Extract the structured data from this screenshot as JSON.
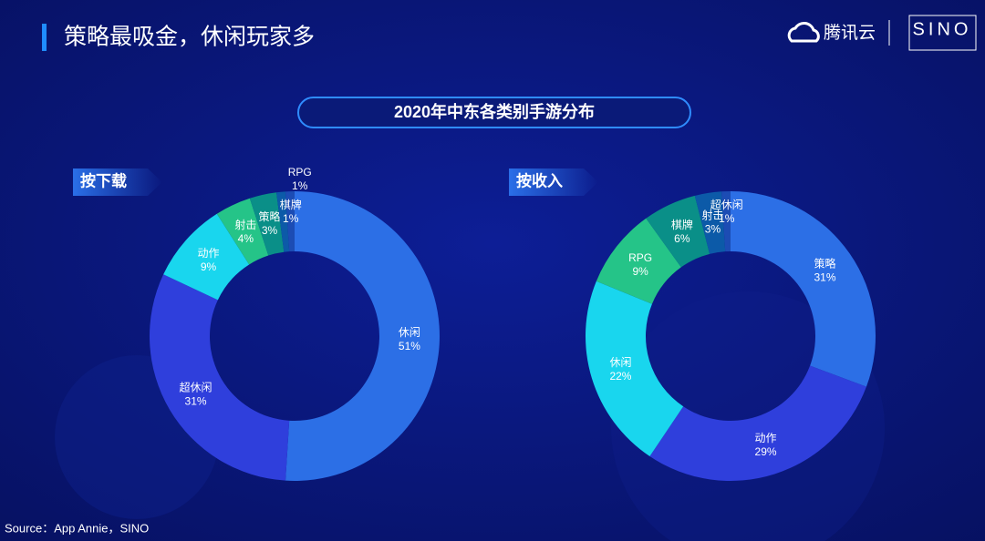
{
  "slide": {
    "title": "策略最吸金，休闲玩家多",
    "logo_text": "腾讯云",
    "brand": "SINO",
    "main_title": "2020年中东各类别手游分布",
    "source": "Source：App Annie，SINO"
  },
  "chart_data": [
    {
      "type": "donut",
      "title": "按下载",
      "categories": [
        "休闲",
        "超休闲",
        "动作",
        "射击",
        "策略",
        "RPG",
        "棋牌"
      ],
      "values": [
        51,
        31,
        9,
        4,
        3,
        1,
        1
      ],
      "value_labels": [
        "51%",
        "31%",
        "9%",
        "4%",
        "3%",
        "1%",
        "1%"
      ],
      "colors": [
        "#2c6fe6",
        "#2f3fdc",
        "#19d6ee",
        "#25c488",
        "#0a8f88",
        "#0c5aa8",
        "#1c4cb4"
      ]
    },
    {
      "type": "donut",
      "title": "按收入",
      "categories": [
        "策略",
        "动作",
        "休闲",
        "RPG",
        "棋牌",
        "射击",
        "超休闲"
      ],
      "values": [
        31,
        29,
        22,
        9,
        6,
        3,
        1
      ],
      "value_labels": [
        "31%",
        "29%",
        "22%",
        "9%",
        "6%",
        "3%",
        "1%"
      ],
      "colors": [
        "#2c6fe6",
        "#2f3fdc",
        "#19d6ee",
        "#25c488",
        "#0a8f88",
        "#0c5aa8",
        "#1c4cb4"
      ]
    }
  ]
}
